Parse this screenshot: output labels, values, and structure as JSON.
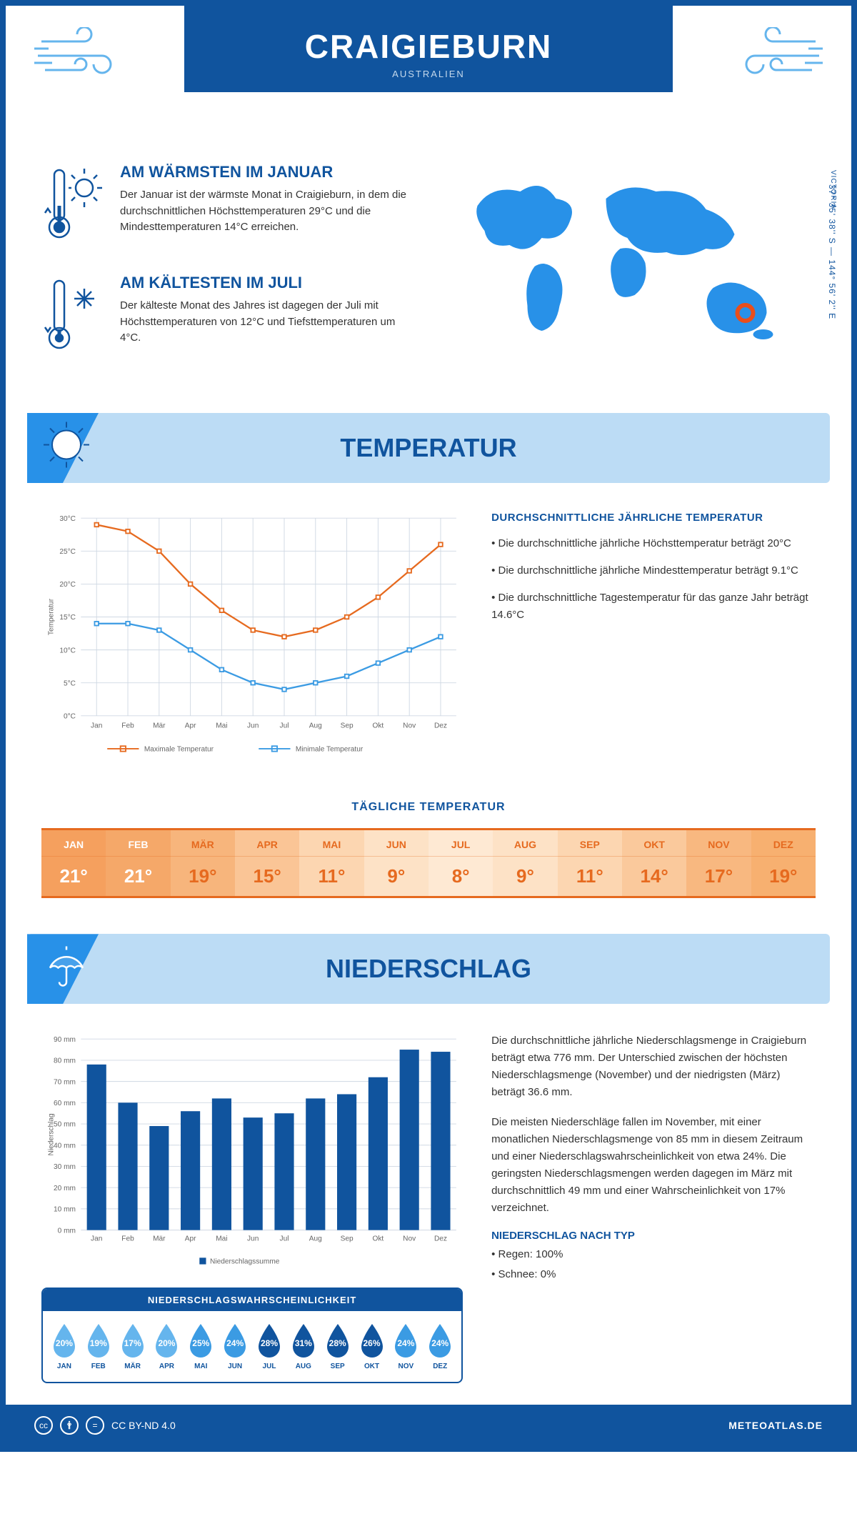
{
  "colors": {
    "primary": "#10549e",
    "lightblue": "#bcdcf5",
    "midblue": "#2891e8",
    "skyblue": "#65b5ed",
    "orange": "#e66a1f",
    "orange_line": "#e66a1f",
    "blue_line": "#3b9be3",
    "text": "#333333",
    "white": "#ffffff",
    "grid": "#cfd8e3",
    "marker": "#e94e1b"
  },
  "header": {
    "city": "CRAIGIEBURN",
    "country": "AUSTRALIEN",
    "region": "VICTORIA",
    "coordinates": "37° 35' 38'' S — 144° 56' 2'' E"
  },
  "facts": {
    "warm": {
      "title": "AM WÄRMSTEN IM JANUAR",
      "text": "Der Januar ist der wärmste Monat in Craigieburn, in dem die durchschnittlichen Höchsttemperaturen 29°C und die Mindesttemperaturen 14°C erreichen."
    },
    "cold": {
      "title": "AM KÄLTESTEN IM JULI",
      "text": "Der kälteste Monat des Jahres ist dagegen der Juli mit Höchsttemperaturen von 12°C und Tiefsttemperaturen um 4°C."
    }
  },
  "sections": {
    "temp": "TEMPERATUR",
    "precip": "NIEDERSCHLAG"
  },
  "temp_chart": {
    "type": "line",
    "months": [
      "Jan",
      "Feb",
      "Mär",
      "Apr",
      "Mai",
      "Jun",
      "Jul",
      "Aug",
      "Sep",
      "Okt",
      "Nov",
      "Dez"
    ],
    "max": [
      29,
      28,
      25,
      20,
      16,
      13,
      12,
      13,
      15,
      18,
      22,
      26
    ],
    "min": [
      14,
      14,
      13,
      10,
      7,
      5,
      4,
      5,
      6,
      8,
      10,
      12
    ],
    "ylim": [
      0,
      30
    ],
    "ytick": 5,
    "ylabel": "Temperatur",
    "legend_max": "Maximale Temperatur",
    "legend_min": "Minimale Temperatur",
    "max_color": "#e66a1f",
    "min_color": "#3b9be3",
    "grid_color": "#cfd8e3",
    "axis_fontsize": 11
  },
  "temp_text": {
    "heading": "DURCHSCHNITTLICHE JÄHRLICHE TEMPERATUR",
    "items": [
      "• Die durchschnittliche jährliche Höchsttemperatur beträgt 20°C",
      "• Die durchschnittliche jährliche Mindesttemperatur beträgt 9.1°C",
      "• Die durchschnittliche Tagestemperatur für das ganze Jahr beträgt 14.6°C"
    ]
  },
  "daily_temp": {
    "title": "TÄGLICHE TEMPERATUR",
    "months": [
      "JAN",
      "FEB",
      "MÄR",
      "APR",
      "MAI",
      "JUN",
      "JUL",
      "AUG",
      "SEP",
      "OKT",
      "NOV",
      "DEZ"
    ],
    "values": [
      "21°",
      "21°",
      "19°",
      "15°",
      "11°",
      "9°",
      "8°",
      "9°",
      "11°",
      "14°",
      "17°",
      "19°"
    ],
    "bg_colors": [
      "#f5a05e",
      "#f5a869",
      "#f7b57c",
      "#fac596",
      "#fcd6b1",
      "#fde2c6",
      "#fee9d3",
      "#fde2c6",
      "#fcd6b1",
      "#fac99c",
      "#f8b880",
      "#f7b070"
    ],
    "text_colors": [
      "#ffffff",
      "#ffffff",
      "#e66a1f",
      "#e66a1f",
      "#e66a1f",
      "#e66a1f",
      "#e66a1f",
      "#e66a1f",
      "#e66a1f",
      "#e66a1f",
      "#e66a1f",
      "#e66a1f"
    ]
  },
  "precip_chart": {
    "type": "bar",
    "months": [
      "Jan",
      "Feb",
      "Mär",
      "Apr",
      "Mai",
      "Jun",
      "Jul",
      "Aug",
      "Sep",
      "Okt",
      "Nov",
      "Dez"
    ],
    "values": [
      78,
      60,
      49,
      56,
      62,
      53,
      55,
      62,
      64,
      72,
      85,
      84
    ],
    "ylim": [
      0,
      90
    ],
    "ytick": 10,
    "ylabel": "Niederschlag",
    "legend": "Niederschlagssumme",
    "bar_color": "#10549e",
    "grid_color": "#cfd8e3"
  },
  "precip_text": {
    "p1": "Die durchschnittliche jährliche Niederschlagsmenge in Craigieburn beträgt etwa 776 mm. Der Unterschied zwischen der höchsten Niederschlagsmenge (November) und der niedrigsten (März) beträgt 36.6 mm.",
    "p2": "Die meisten Niederschläge fallen im November, mit einer monatlichen Niederschlagsmenge von 85 mm in diesem Zeitraum und einer Niederschlagswahrscheinlichkeit von etwa 24%. Die geringsten Niederschlagsmengen werden dagegen im März mit durchschnittlich 49 mm und einer Wahrscheinlichkeit von 17% verzeichnet.",
    "type_heading": "NIEDERSCHLAG NACH TYP",
    "type_rain": "• Regen: 100%",
    "type_snow": "• Schnee: 0%"
  },
  "precip_prob": {
    "title": "NIEDERSCHLAGSWAHRSCHEINLICHKEIT",
    "months": [
      "JAN",
      "FEB",
      "MÄR",
      "APR",
      "MAI",
      "JUN",
      "JUL",
      "AUG",
      "SEP",
      "OKT",
      "NOV",
      "DEZ"
    ],
    "values": [
      "20%",
      "19%",
      "17%",
      "20%",
      "25%",
      "24%",
      "28%",
      "31%",
      "28%",
      "26%",
      "24%",
      "24%"
    ],
    "colors": [
      "#65b5ed",
      "#65b5ed",
      "#65b5ed",
      "#65b5ed",
      "#3b9be3",
      "#3b9be3",
      "#10549e",
      "#10549e",
      "#10549e",
      "#10549e",
      "#3b9be3",
      "#3b9be3"
    ]
  },
  "footer": {
    "license": "CC BY-ND 4.0",
    "site": "METEOATLAS.DE"
  }
}
